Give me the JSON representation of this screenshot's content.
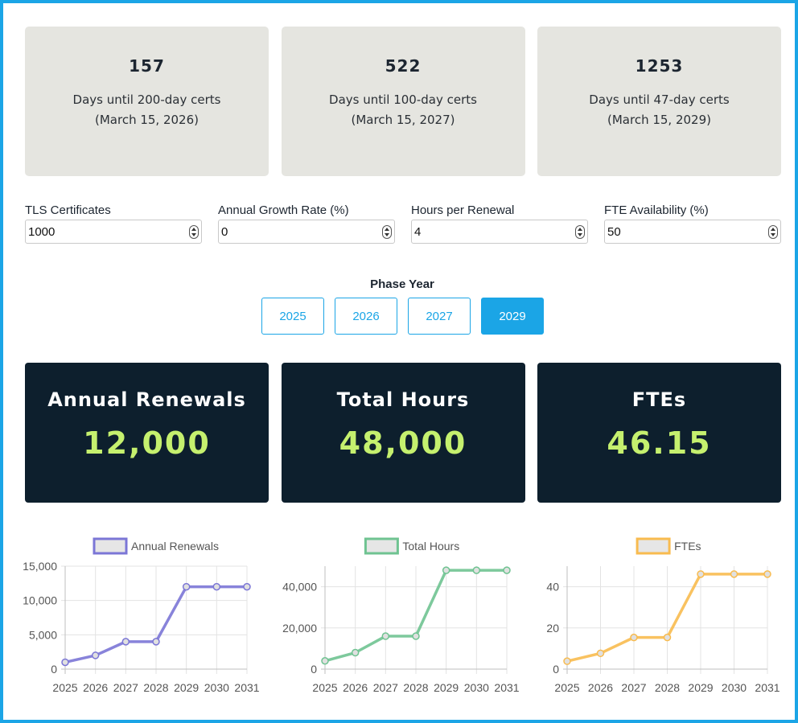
{
  "countdowns": [
    {
      "value": "157",
      "label": "Days until 200-day certs",
      "date": "(March 15, 2026)"
    },
    {
      "value": "522",
      "label": "Days until 100-day certs",
      "date": "(March 15, 2027)"
    },
    {
      "value": "1253",
      "label": "Days until 47-day certs",
      "date": "(March 15, 2029)"
    }
  ],
  "inputs": [
    {
      "label": "TLS Certificates",
      "value": "1000"
    },
    {
      "label": "Annual Growth Rate (%)",
      "value": "0"
    },
    {
      "label": "Hours per Renewal",
      "value": "4"
    },
    {
      "label": "FTE Availability (%)",
      "value": "50"
    }
  ],
  "phase": {
    "title": "Phase Year",
    "years": [
      "2025",
      "2026",
      "2027",
      "2029"
    ],
    "selected": "2029"
  },
  "stats": [
    {
      "title": "Annual Renewals",
      "value": "12,000"
    },
    {
      "title": "Total Hours",
      "value": "48,000"
    },
    {
      "title": "FTEs",
      "value": "46.15"
    }
  ],
  "colors": {
    "accent": "#1ba5e6",
    "stat_bg": "#0d1f2d",
    "stat_value": "#c5f06e",
    "card_bg": "#e5e5e0"
  },
  "chart_data": [
    {
      "type": "line",
      "x": [
        "2025",
        "2026",
        "2027",
        "2028",
        "2029",
        "2030",
        "2031"
      ],
      "series": [
        {
          "name": "Annual Renewals",
          "values": [
            1000,
            2000,
            4000,
            4000,
            12000,
            12000,
            12000
          ],
          "color": "#7b76d6"
        }
      ],
      "ylim": [
        0,
        15000
      ],
      "yticks": [
        "0",
        "5,000",
        "10,000",
        "15,000"
      ],
      "ytick_values": [
        0,
        5000,
        10000,
        15000
      ],
      "grid": true,
      "legend": "top"
    },
    {
      "type": "line",
      "x": [
        "2025",
        "2026",
        "2027",
        "2028",
        "2029",
        "2030",
        "2031"
      ],
      "series": [
        {
          "name": "Total Hours",
          "values": [
            4000,
            8000,
            16000,
            16000,
            48000,
            48000,
            48000
          ],
          "color": "#6fc391"
        }
      ],
      "ylim": [
        0,
        50000
      ],
      "yticks": [
        "0",
        "20,000",
        "40,000"
      ],
      "ytick_values": [
        0,
        20000,
        40000
      ],
      "grid": true,
      "legend": "top"
    },
    {
      "type": "line",
      "x": [
        "2025",
        "2026",
        "2027",
        "2028",
        "2029",
        "2030",
        "2031"
      ],
      "series": [
        {
          "name": "FTEs",
          "values": [
            3.85,
            7.69,
            15.38,
            15.38,
            46.15,
            46.15,
            46.15
          ],
          "color": "#f8bb4f"
        }
      ],
      "ylim": [
        0,
        50
      ],
      "yticks": [
        "0",
        "20",
        "40"
      ],
      "ytick_values": [
        0,
        20,
        40
      ],
      "grid": true,
      "legend": "top"
    }
  ]
}
